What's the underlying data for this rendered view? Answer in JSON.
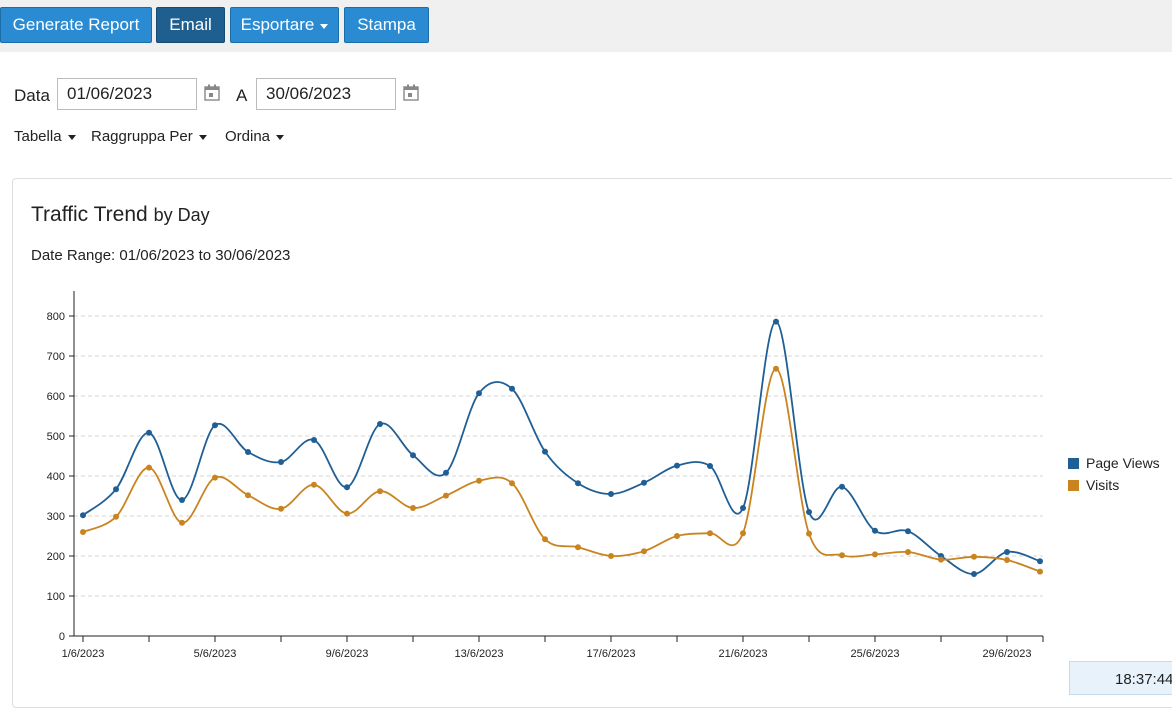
{
  "toolbar": {
    "generate_label": "Generate Report",
    "email_label": "Email",
    "export_label": "Esportare",
    "print_label": "Stampa"
  },
  "filters": {
    "date_label": "Data",
    "from_value": "01/06/2023",
    "to_label": "A",
    "to_value": "30/06/2023",
    "table_label": "Tabella",
    "group_label": "Raggruppa Per",
    "sort_label": "Ordina"
  },
  "report": {
    "title": "Traffic Trend",
    "title_suffix": "by Day",
    "date_range": "Date Range: 01/06/2023 to 30/06/2023"
  },
  "status": {
    "clock": "18:37:44"
  },
  "colors": {
    "page_views": "#1f5f96",
    "visits": "#c98420",
    "button": "#2a8bd2",
    "button_active": "#1f5f8f"
  },
  "chart_data": {
    "type": "line",
    "x": [
      "1/6/2023",
      "2/6/2023",
      "3/6/2023",
      "4/6/2023",
      "5/6/2023",
      "6/6/2023",
      "7/6/2023",
      "8/6/2023",
      "9/6/2023",
      "10/6/2023",
      "11/6/2023",
      "12/6/2023",
      "13/6/2023",
      "14/6/2023",
      "15/6/2023",
      "16/6/2023",
      "17/6/2023",
      "18/6/2023",
      "19/6/2023",
      "20/6/2023",
      "21/6/2023",
      "22/6/2023",
      "23/6/2023",
      "24/6/2023",
      "25/6/2023",
      "26/6/2023",
      "27/6/2023",
      "28/6/2023",
      "29/6/2023",
      "30/6/2023"
    ],
    "x_tick_labels": [
      "1/6/2023",
      "5/6/2023",
      "9/6/2023",
      "13/6/2023",
      "17/6/2023",
      "21/6/2023",
      "25/6/2023",
      "29/6/2023"
    ],
    "series": [
      {
        "name": "Page Views",
        "values": [
          302,
          367,
          508,
          340,
          527,
          460,
          435,
          490,
          372,
          530,
          452,
          408,
          607,
          618,
          461,
          382,
          355,
          383,
          426,
          425,
          320,
          786,
          310,
          373,
          263,
          262,
          200,
          155,
          210,
          187
        ]
      },
      {
        "name": "Visits",
        "values": [
          260,
          298,
          421,
          283,
          396,
          352,
          318,
          378,
          306,
          362,
          320,
          351,
          388,
          382,
          242,
          222,
          200,
          212,
          250,
          257,
          257,
          668,
          256,
          202,
          204,
          210,
          191,
          198,
          190,
          161
        ]
      }
    ],
    "ylim": [
      0,
      800
    ],
    "y_ticks": [
      0,
      100,
      200,
      300,
      400,
      500,
      600,
      700,
      800
    ],
    "grid": true,
    "legend": "right"
  }
}
